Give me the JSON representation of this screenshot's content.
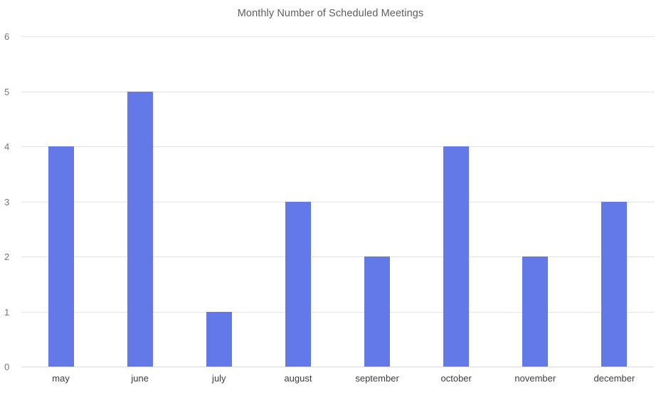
{
  "chart_data": {
    "type": "bar",
    "title": "Monthly Number of Scheduled Meetings",
    "categories": [
      "may",
      "june",
      "july",
      "august",
      "september",
      "october",
      "november",
      "december"
    ],
    "values": [
      4,
      5,
      1,
      3,
      2,
      4,
      2,
      3
    ],
    "xlabel": "",
    "ylabel": "",
    "ylim": [
      0,
      6
    ],
    "yticks": [
      0,
      1,
      2,
      3,
      4,
      5,
      6
    ],
    "grid": true,
    "legend": false,
    "bar_color": "#6379e8",
    "gridline_color": "#e4e4e4",
    "title_color": "#5f5f5f",
    "ytick_color": "#757575",
    "xtick_color": "#3d3d3d",
    "background_color": "#ffffff"
  }
}
